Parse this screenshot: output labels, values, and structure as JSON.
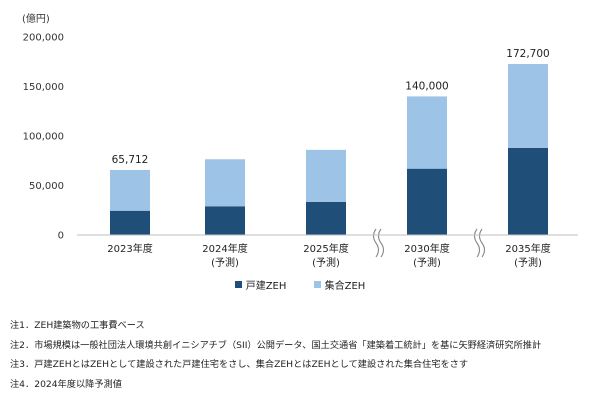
{
  "colors": {
    "detached": "#1F4E79",
    "collective": "#9DC3E6",
    "axis": "#BFBFBF"
  },
  "chart_data": {
    "type": "bar",
    "stacked": true,
    "unit_label": "(億円)",
    "categories": [
      [
        "2023年度"
      ],
      [
        "2024年度",
        "(予測)"
      ],
      [
        "2025年度",
        "(予測)"
      ],
      [
        "2030年度",
        "(予測)"
      ],
      [
        "2035年度",
        "(予測)"
      ]
    ],
    "series": [
      {
        "name": "戸建ZEH",
        "values": [
          24500,
          29000,
          33500,
          67000,
          88000
        ]
      },
      {
        "name": "集合ZEH",
        "values": [
          41212,
          47500,
          52500,
          73000,
          84700
        ]
      }
    ],
    "total_labels": [
      "65,712",
      "",
      "",
      "140,000",
      "172,700"
    ],
    "yticks": [
      "0",
      "50,000",
      "100,000",
      "150,000",
      "200,000"
    ],
    "ylim": [
      0,
      200000
    ],
    "axis_breaks_before_index": [
      3,
      4
    ],
    "legend_position": "bottom"
  },
  "notes": [
    "注1．ZEH建築物の工事費ベース",
    "注2．市場規模は一般社団法人環境共創イニシアチブ（SII）公開データ、国土交通省「建築着工統計」を基に矢野経済研究所推計",
    "注3．戸建ZEHとはZEHとして建設された戸建住宅をさし、集合ZEHとはZEHとして建設された集合住宅をさす",
    "注4．2024年度以降予測値"
  ]
}
